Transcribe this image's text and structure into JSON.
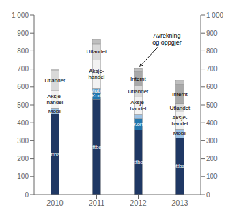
{
  "chart_data": {
    "type": "bar",
    "stacked": true,
    "grid": false,
    "categories": [
      "2010",
      "2011",
      "2012",
      "2013"
    ],
    "series": [
      {
        "color": "#1f3864",
        "values": [
          450,
          530,
          360,
          315
        ],
        "labels": [
          "Nettbank",
          "Nettbank",
          "Nettbank",
          "Nettbank"
        ]
      },
      {
        "color": "#2176ae",
        "values": [
          0,
          40,
          65,
          0
        ],
        "labels": [
          null,
          "Kort",
          "Kort",
          null
        ]
      },
      {
        "color": "#9dc3e6",
        "values": [
          30,
          0,
          20,
          50
        ],
        "labels": [
          "Mobil",
          null,
          null,
          "Mobil"
        ]
      },
      {
        "color": "#5ba3d0",
        "values": [
          0,
          20,
          0,
          0
        ],
        "labels": [
          null,
          "Mobil",
          null,
          null
        ]
      },
      {
        "color": "#f2f2f2",
        "values": [
          100,
          160,
          100,
          95
        ],
        "labels": [
          "Aksje-\nhandel",
          "Aksje-\nhandel",
          "Aksje-\nhandel",
          "Aksje-\nhandel"
        ]
      },
      {
        "color": "#d9d9d9",
        "values": [
          110,
          90,
          60,
          45
        ],
        "labels": [
          "Utlandet",
          "Utlandet",
          "Utlandet",
          "Utlandet"
        ]
      },
      {
        "color": "#a9a9a9",
        "values": [
          0,
          0,
          80,
          110
        ],
        "labels": [
          null,
          null,
          "Internt",
          "Internt"
        ]
      },
      {
        "color": "#bfbfbf",
        "values": [
          10,
          25,
          20,
          20
        ],
        "labels": [
          null,
          null,
          null,
          null
        ]
      }
    ],
    "ylim": [
      0,
      1000
    ],
    "yticks": [
      0,
      100,
      200,
      300,
      400,
      500,
      600,
      700,
      800,
      900,
      {
        "value": 1000,
        "label": "1 000"
      }
    ],
    "y2lim": [
      0,
      1000
    ],
    "y2ticks": [
      0,
      100,
      200,
      300,
      400,
      500,
      600,
      700,
      800,
      900,
      {
        "value": 1000,
        "label": "1 000"
      }
    ],
    "annotations": [
      {
        "text": "Avrekning\nog oppgjer",
        "x": "2012"
      }
    ]
  }
}
